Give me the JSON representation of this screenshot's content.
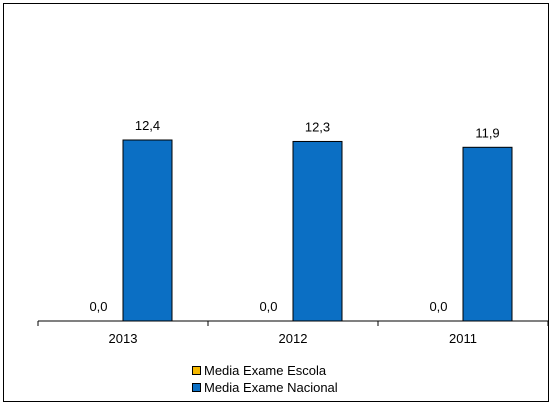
{
  "chart_data": {
    "type": "bar",
    "categories": [
      "2013",
      "2012",
      "2011"
    ],
    "series": [
      {
        "name": "Media Exame Escola",
        "values": [
          0.0,
          0.0,
          0.0
        ],
        "labels": [
          "0,0",
          "0,0",
          "0,0"
        ],
        "color": "#F5B800"
      },
      {
        "name": "Media Exame Nacional",
        "values": [
          12.4,
          12.3,
          11.9
        ],
        "labels": [
          "12,4",
          "12,3",
          "11,9"
        ],
        "color": "#0B6FC4"
      }
    ],
    "ylim": [
      0,
      20
    ],
    "grid": false,
    "legend": "bottom"
  }
}
